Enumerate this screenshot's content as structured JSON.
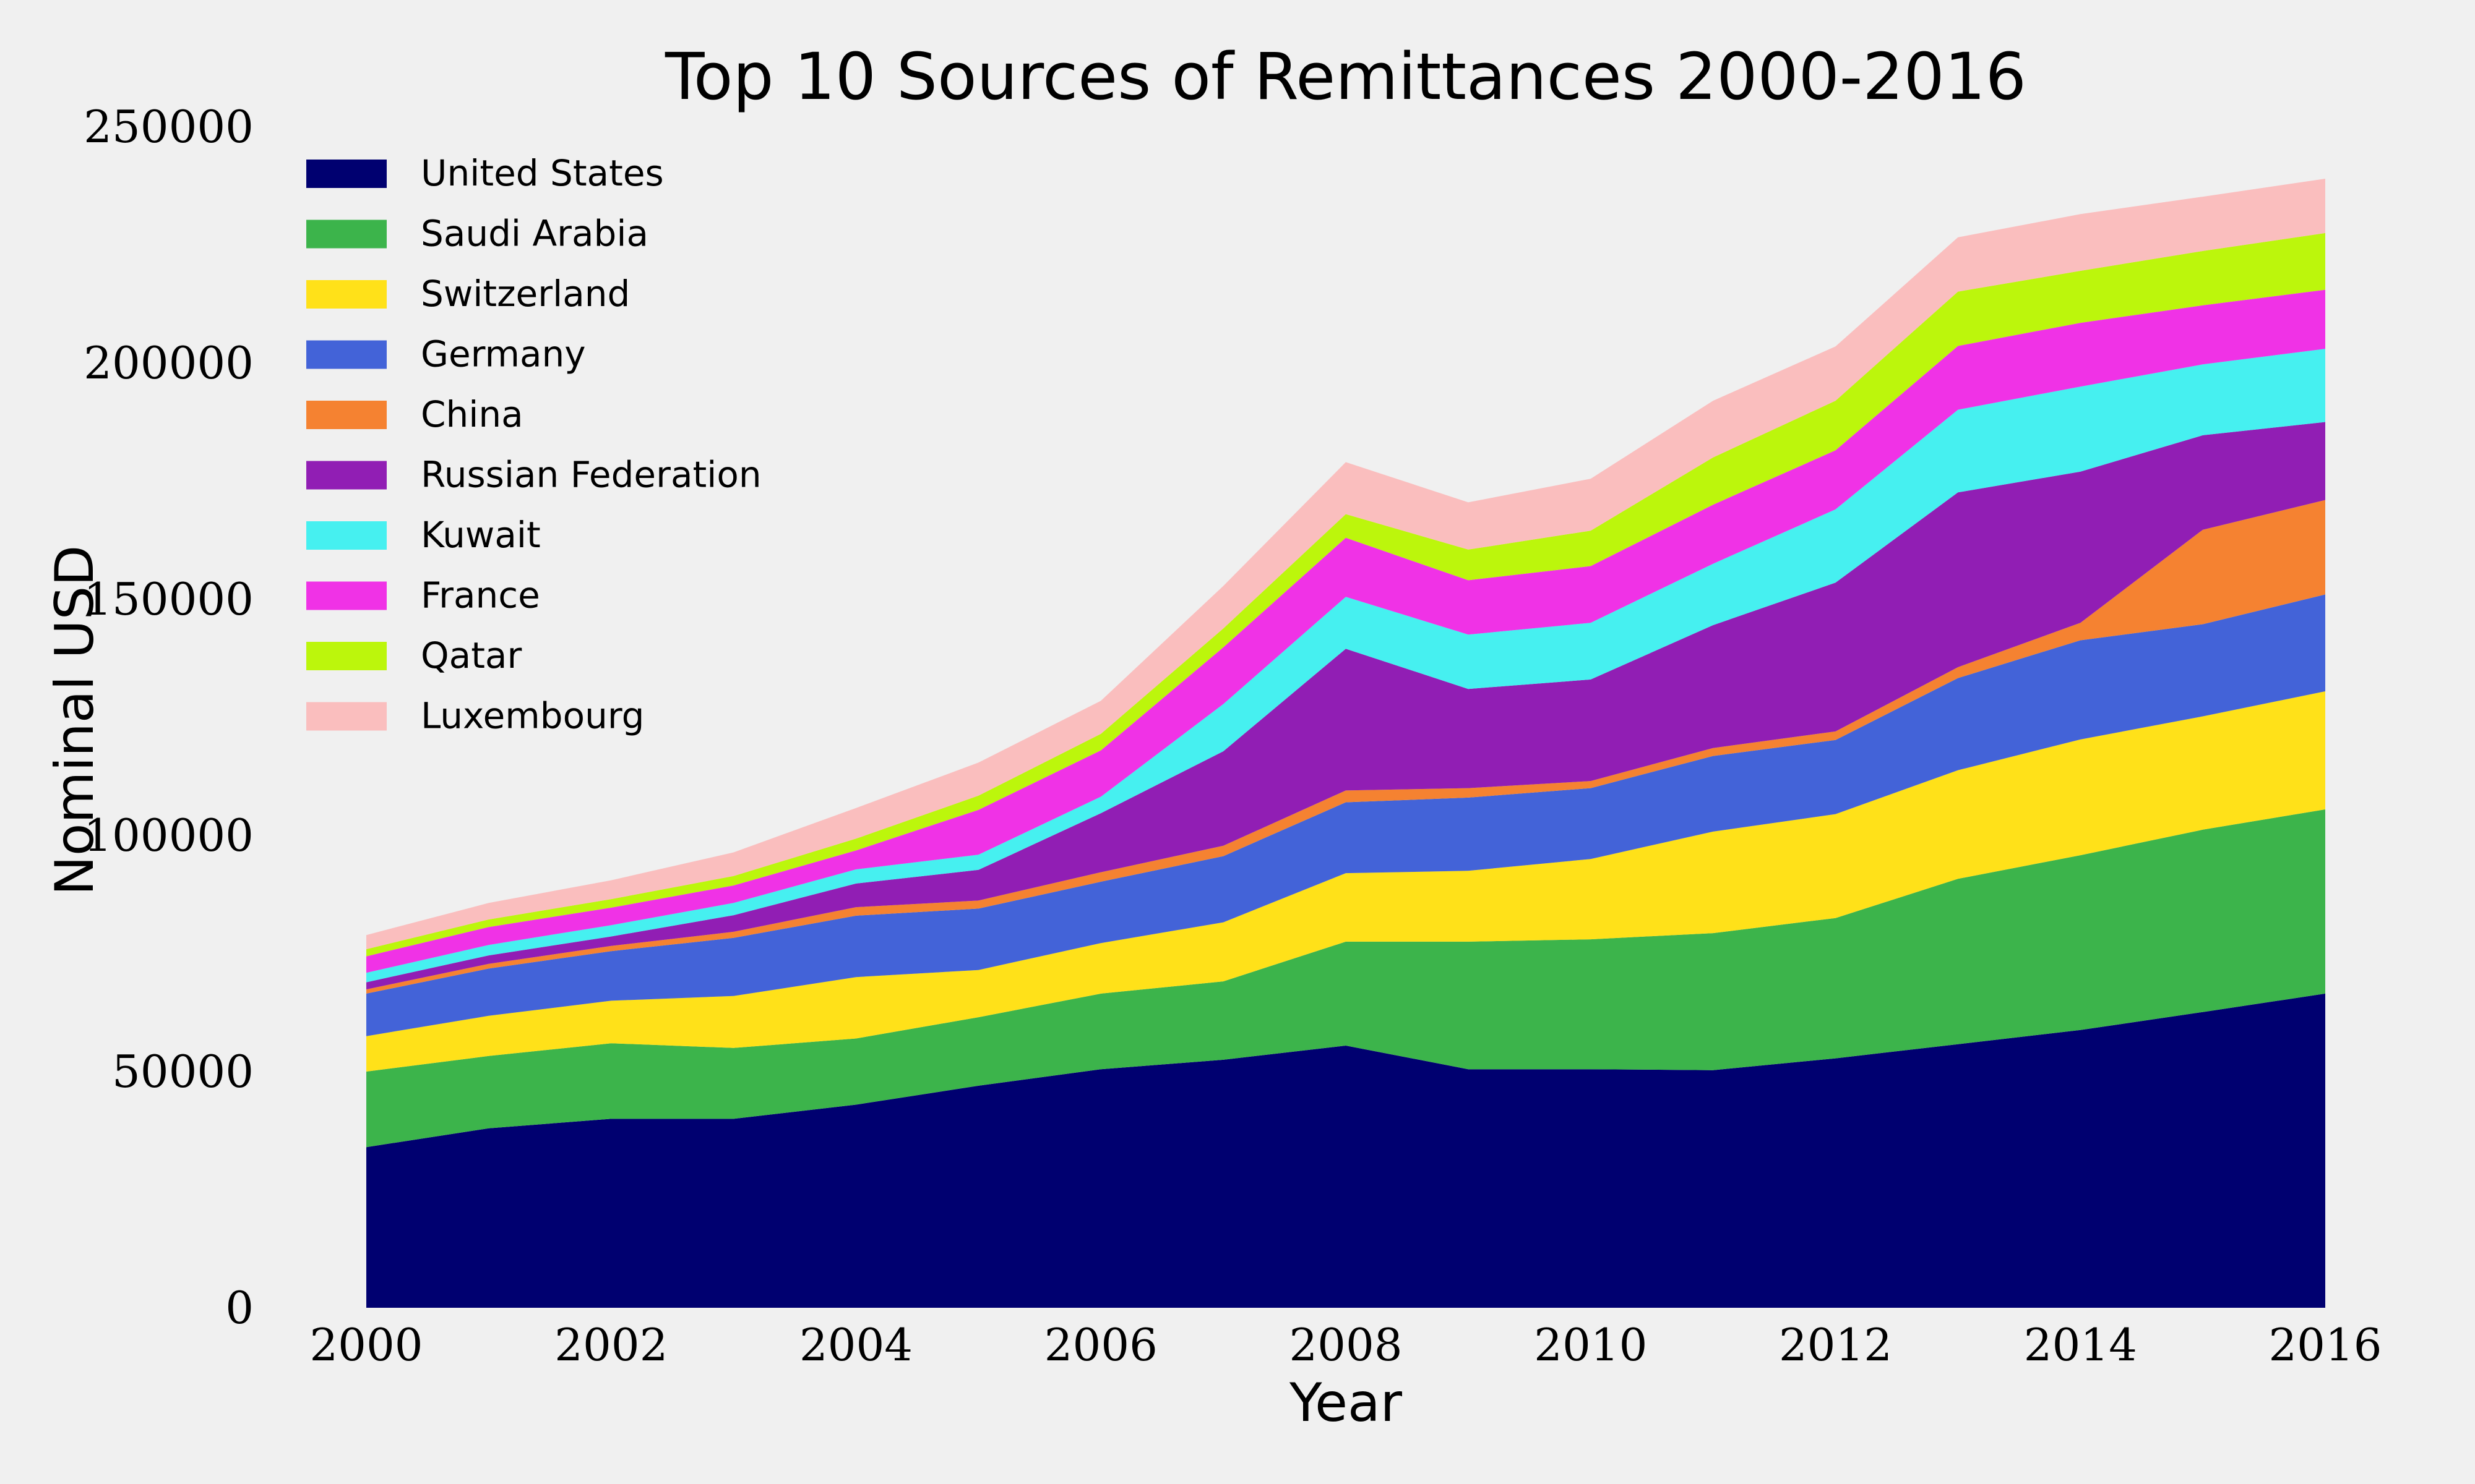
{
  "chart_data": {
    "type": "area",
    "stacked": true,
    "title": "Top 10 Sources of Remittances 2000-2016",
    "xlabel": "Year",
    "ylabel": "Nominal USD",
    "x": [
      2000,
      2001,
      2002,
      2003,
      2004,
      2005,
      2006,
      2007,
      2008,
      2009,
      2010,
      2011,
      2012,
      2013,
      2014,
      2015,
      2016
    ],
    "xlim": [
      2000,
      2016
    ],
    "ylim": [
      0,
      250000
    ],
    "xticks": [
      "2000",
      "2002",
      "2004",
      "2006",
      "2008",
      "2010",
      "2012",
      "2014",
      "2016"
    ],
    "yticks": [
      "0",
      "50000",
      "100000",
      "150000",
      "200000",
      "250000"
    ],
    "grid": false,
    "legend_position": "top-left",
    "series": [
      {
        "name": "United States",
        "color": "#000070",
        "values": [
          34000,
          38000,
          40000,
          40000,
          43000,
          47000,
          50500,
          52500,
          55500,
          50500,
          50500,
          50300,
          52800,
          55800,
          58800,
          62600,
          66500
        ]
      },
      {
        "name": "Saudi Arabia",
        "color": "#3cb44b",
        "values": [
          16000,
          15300,
          16000,
          15000,
          14000,
          14500,
          16000,
          16600,
          22000,
          27000,
          27500,
          29000,
          29700,
          35000,
          37000,
          38600,
          39000
        ]
      },
      {
        "name": "Switzerland",
        "color": "#ffe119",
        "values": [
          7500,
          8500,
          9000,
          11000,
          13000,
          10000,
          10700,
          12500,
          14500,
          15000,
          17000,
          21500,
          22000,
          23000,
          24500,
          24000,
          25000
        ]
      },
      {
        "name": "Germany",
        "color": "#4363d8",
        "values": [
          9000,
          10000,
          10500,
          12300,
          13000,
          13000,
          13000,
          14000,
          15000,
          15500,
          15000,
          16000,
          15700,
          19500,
          21000,
          19500,
          20500
        ]
      },
      {
        "name": "China",
        "color": "#f58231",
        "values": [
          900,
          1000,
          1100,
          1300,
          1800,
          1700,
          2000,
          2200,
          2500,
          2000,
          1500,
          1700,
          1800,
          2300,
          3700,
          20000,
          20000
        ]
      },
      {
        "name": "Russian Federation",
        "color": "#911eb4",
        "values": [
          1500,
          1800,
          2000,
          3500,
          5000,
          6500,
          12500,
          20000,
          30000,
          21000,
          21500,
          26000,
          31500,
          37000,
          32000,
          20000,
          16500
        ]
      },
      {
        "name": "Kuwait",
        "color": "#46f0f0",
        "values": [
          2000,
          2200,
          2400,
          2600,
          3000,
          3200,
          3500,
          10000,
          11000,
          11500,
          12000,
          13000,
          15500,
          17500,
          18000,
          15000,
          15500
        ]
      },
      {
        "name": "France",
        "color": "#f032e6",
        "values": [
          3500,
          3800,
          3700,
          3700,
          4000,
          9500,
          9800,
          12000,
          12500,
          11500,
          12000,
          12500,
          12500,
          13500,
          13500,
          12500,
          12500
        ]
      },
      {
        "name": "Qatar",
        "color": "#bcf60c",
        "values": [
          1500,
          1600,
          1800,
          2000,
          2500,
          3000,
          3500,
          4000,
          5000,
          6500,
          7500,
          10000,
          10500,
          11500,
          11000,
          11500,
          12000
        ]
      },
      {
        "name": "Luxembourg",
        "color": "#fabebe",
        "values": [
          3000,
          3500,
          4000,
          5000,
          6500,
          7000,
          7000,
          9000,
          11000,
          10000,
          11000,
          12000,
          11500,
          11500,
          12000,
          11500,
          11500
        ]
      }
    ]
  }
}
